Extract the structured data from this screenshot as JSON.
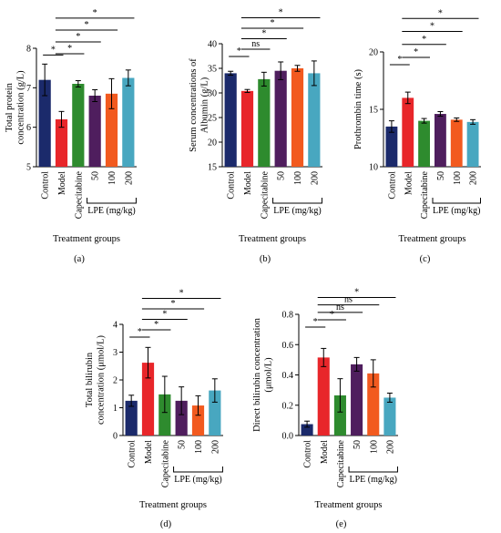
{
  "colors": {
    "Control": "#1b2a6b",
    "Model": "#e8262a",
    "Capecitabine": "#2e8b2e",
    "50": "#4f1e5e",
    "100": "#f25a1f",
    "200": "#48a7c0"
  },
  "chart_data": [
    {
      "panel_label": "(a)",
      "type": "bar",
      "ylabel": "Total protein\nconcentration (g/L)",
      "xlabel": "Treatment groups",
      "group_label": "LPE (mg/kg)",
      "categories": [
        "Control",
        "Model",
        "Capecitabine",
        "50",
        "100",
        "200"
      ],
      "values": [
        7.2,
        6.2,
        7.1,
        6.8,
        6.85,
        7.25
      ],
      "errors": [
        0.4,
        0.2,
        0.08,
        0.15,
        0.38,
        0.2
      ],
      "ylim": [
        5,
        8
      ],
      "yticks": [
        "5",
        "6",
        "7",
        "8"
      ],
      "significance": [
        {
          "from": 0,
          "to": 1,
          "label": "*"
        },
        {
          "from": 1,
          "to": 2,
          "label": "*"
        },
        {
          "from": 1,
          "to": 3,
          "label": "*"
        },
        {
          "from": 1,
          "to": 4,
          "label": "*"
        },
        {
          "from": 1,
          "to": 5,
          "label": "*"
        }
      ]
    },
    {
      "panel_label": "(b)",
      "type": "bar",
      "ylabel": "Serum concentrations of\nAlbumin (g/L)",
      "xlabel": "Treatment groups",
      "group_label": "LPE (mg/kg)",
      "categories": [
        "Control",
        "Model",
        "Capecitabine",
        "50",
        "100",
        "200"
      ],
      "values": [
        34.0,
        30.4,
        32.8,
        34.5,
        35.0,
        34.0
      ],
      "errors": [
        0.4,
        0.3,
        1.4,
        1.8,
        0.6,
        2.5
      ],
      "ylim": [
        15,
        40
      ],
      "yticks": [
        "15",
        "20",
        "25",
        "30",
        "35",
        "40"
      ],
      "significance": [
        {
          "from": 0,
          "to": 1,
          "label": "*"
        },
        {
          "from": 1,
          "to": 2,
          "label": "ns"
        },
        {
          "from": 1,
          "to": 3,
          "label": "*"
        },
        {
          "from": 1,
          "to": 4,
          "label": "*"
        },
        {
          "from": 1,
          "to": 5,
          "label": "*"
        }
      ]
    },
    {
      "panel_label": "(c)",
      "type": "bar",
      "ylabel": "Prothrombin time (s)",
      "xlabel": "Treatment groups",
      "group_label": "LPE (mg/kg)",
      "categories": [
        "Control",
        "Model",
        "Capecitabine",
        "50",
        "100",
        "200"
      ],
      "values": [
        13.5,
        16.0,
        14.0,
        14.6,
        14.1,
        13.9
      ],
      "errors": [
        0.5,
        0.5,
        0.2,
        0.2,
        0.15,
        0.2
      ],
      "ylim": [
        10,
        20
      ],
      "yticks": [
        "10",
        "15",
        "20"
      ],
      "significance": [
        {
          "from": 0,
          "to": 1,
          "label": "*"
        },
        {
          "from": 1,
          "to": 2,
          "label": "*"
        },
        {
          "from": 1,
          "to": 3,
          "label": "*"
        },
        {
          "from": 1,
          "to": 4,
          "label": "*"
        },
        {
          "from": 1,
          "to": 5,
          "label": "*"
        }
      ]
    },
    {
      "panel_label": "(d)",
      "type": "bar",
      "ylabel": "Total bilirubin\nconcentration (μmol/L)",
      "xlabel": "Treatment groups",
      "group_label": "LPE (mg/kg)",
      "categories": [
        "Control",
        "Model",
        "Capecitabine",
        "50",
        "100",
        "200"
      ],
      "values": [
        1.25,
        2.62,
        1.48,
        1.25,
        1.08,
        1.62
      ],
      "errors": [
        0.2,
        0.55,
        0.65,
        0.5,
        0.35,
        0.42
      ],
      "ylim": [
        0,
        4
      ],
      "yticks": [
        "0",
        "1",
        "2",
        "3",
        "4"
      ],
      "significance": [
        {
          "from": 0,
          "to": 1,
          "label": "*"
        },
        {
          "from": 1,
          "to": 2,
          "label": "*"
        },
        {
          "from": 1,
          "to": 3,
          "label": "*"
        },
        {
          "from": 1,
          "to": 4,
          "label": "*"
        },
        {
          "from": 1,
          "to": 5,
          "label": "*"
        }
      ]
    },
    {
      "panel_label": "(e)",
      "type": "bar",
      "ylabel": "Direct bilirubin concentration\n(μmol/L)",
      "xlabel": "Treatment groups",
      "group_label": "LPE (mg/kg)",
      "categories": [
        "Control",
        "Model",
        "Capecitabine",
        "50",
        "100",
        "200"
      ],
      "values": [
        0.075,
        0.515,
        0.265,
        0.47,
        0.41,
        0.25
      ],
      "errors": [
        0.02,
        0.06,
        0.11,
        0.045,
        0.09,
        0.03
      ],
      "ylim": [
        0,
        0.8
      ],
      "yticks": [
        "0.0",
        "0.2",
        "0.4",
        "0.6",
        "0.8"
      ],
      "significance": [
        {
          "from": 0,
          "to": 1,
          "label": "*"
        },
        {
          "from": 1,
          "to": 2,
          "label": "*"
        },
        {
          "from": 1,
          "to": 3,
          "label": "ns"
        },
        {
          "from": 1,
          "to": 4,
          "label": "ns"
        },
        {
          "from": 1,
          "to": 5,
          "label": "*"
        }
      ]
    }
  ]
}
